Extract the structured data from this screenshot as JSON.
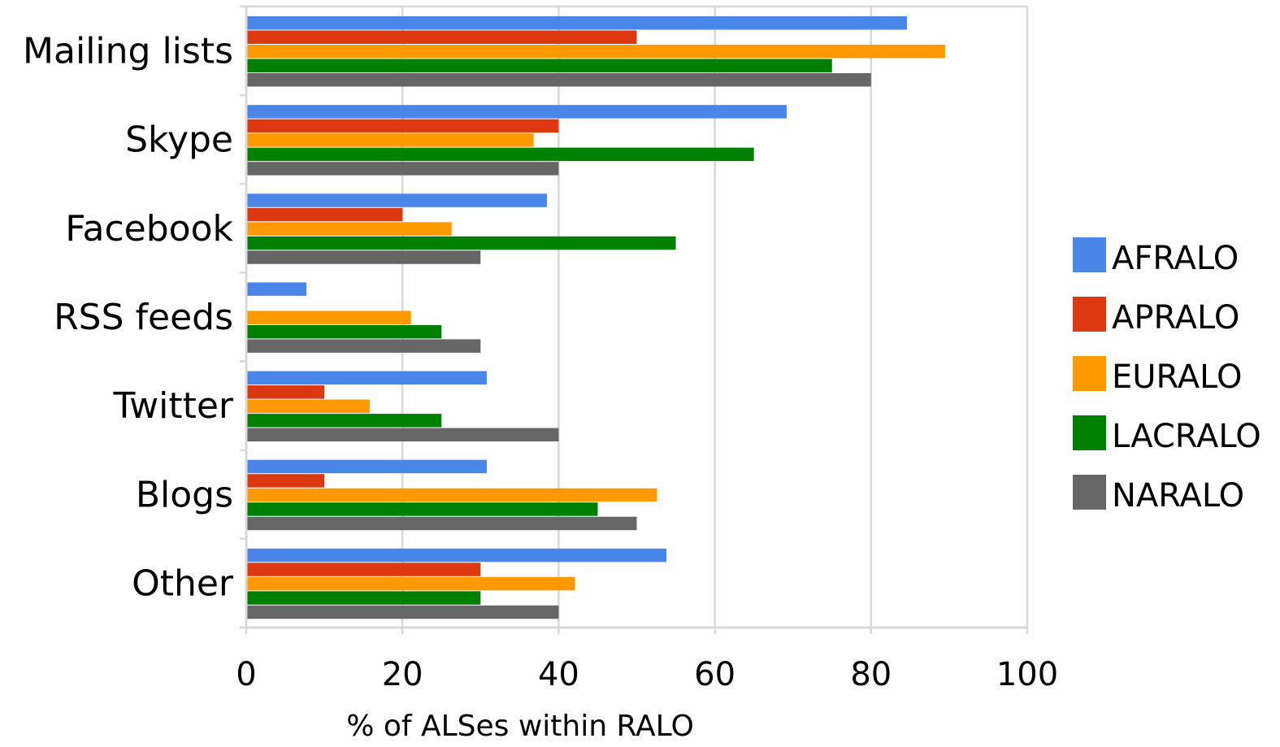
{
  "chart_data": {
    "type": "bar",
    "orientation": "horizontal",
    "categories": [
      "Mailing lists",
      "Skype",
      "Facebook",
      "RSS feeds",
      "Twitter",
      "Blogs",
      "Other"
    ],
    "series": [
      {
        "name": "AFRALO",
        "color": "#4a86e8",
        "values": [
          84.6,
          69.2,
          38.5,
          7.7,
          30.8,
          30.8,
          53.8
        ]
      },
      {
        "name": "APRALO",
        "color": "#dc3912",
        "values": [
          50,
          40,
          20,
          0,
          10,
          10,
          30
        ]
      },
      {
        "name": "EURALO",
        "color": "#ff9900",
        "values": [
          89.5,
          36.8,
          26.3,
          21.1,
          15.8,
          52.6,
          42.1
        ]
      },
      {
        "name": "LACRALO",
        "color": "#008000",
        "values": [
          75,
          65,
          55,
          25,
          25,
          45,
          30
        ]
      },
      {
        "name": "NARALO",
        "color": "#666666",
        "values": [
          80,
          40,
          30,
          30,
          40,
          50,
          40
        ]
      }
    ],
    "xlim": [
      0,
      100
    ],
    "xticks": [
      "0",
      "20",
      "40",
      "60",
      "80",
      "100"
    ],
    "xlabel": "% of ALSes within RALO",
    "ylabel": "",
    "title": "",
    "grid": true,
    "legend_position": "right"
  }
}
